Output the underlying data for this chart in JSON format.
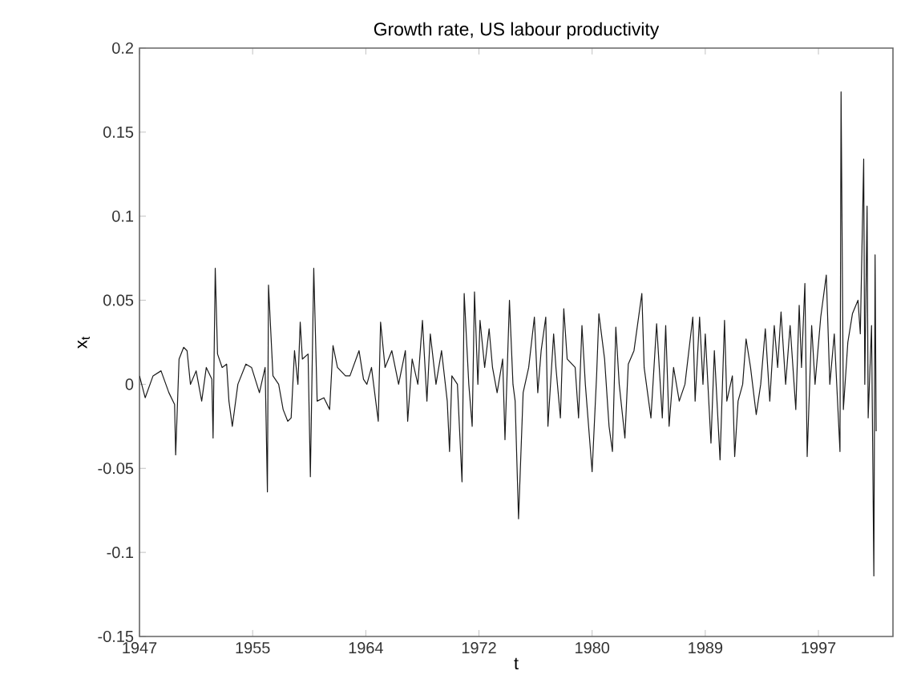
{
  "chart_data": {
    "type": "line",
    "title": "Growth rate, US labour productivity",
    "xlabel": "t",
    "ylabel": "x$_{t}$",
    "xlim": [
      1947,
      2002.6
    ],
    "ylim": [
      -0.15,
      0.2
    ],
    "xticks": [
      1947,
      {
        "value": 1955.35,
        "label": "1955"
      },
      {
        "value": 1963.7,
        "label": "1964"
      },
      {
        "value": 1972.05,
        "label": "1972"
      },
      {
        "value": 1980.4,
        "label": "1980"
      },
      {
        "value": 1988.75,
        "label": "1989"
      },
      {
        "value": 1997.1,
        "label": "1997"
      }
    ],
    "yticks": [
      -0.15,
      -0.1,
      -0.05,
      0,
      0.05,
      0.1,
      0.15,
      0.2
    ],
    "grid": false,
    "marker": "none",
    "line_style": "solid",
    "series": [
      {
        "color": "#1a1a1a",
        "x": [
          1947.0,
          1947.42,
          1948.0,
          1948.59,
          1949.17,
          1949.59,
          1949.67,
          1949.92,
          1950.26,
          1950.51,
          1950.76,
          1951.18,
          1951.59,
          1951.93,
          1952.34,
          1952.43,
          1952.59,
          1952.76,
          1953.1,
          1953.43,
          1953.6,
          1953.85,
          1954.26,
          1954.85,
          1955.27,
          1955.85,
          1956.27,
          1956.44,
          1956.52,
          1956.85,
          1957.27,
          1957.6,
          1957.94,
          1958.19,
          1958.44,
          1958.69,
          1958.86,
          1959.02,
          1959.44,
          1959.61,
          1959.86,
          1960.11,
          1960.61,
          1961.03,
          1961.28,
          1961.61,
          1962.2,
          1962.53,
          1963.2,
          1963.53,
          1963.78,
          1964.12,
          1964.62,
          1964.79,
          1965.12,
          1965.62,
          1966.12,
          1966.62,
          1966.79,
          1967.12,
          1967.54,
          1967.88,
          1968.21,
          1968.46,
          1968.88,
          1969.29,
          1969.71,
          1969.88,
          1970.05,
          1970.46,
          1970.8,
          1970.96,
          1971.3,
          1971.55,
          1971.72,
          1971.97,
          1972.13,
          1972.47,
          1972.8,
          1973.05,
          1973.39,
          1973.8,
          1973.97,
          1974.3,
          1974.56,
          1974.72,
          1974.97,
          1975.31,
          1975.72,
          1976.14,
          1976.39,
          1976.64,
          1976.98,
          1977.14,
          1977.56,
          1977.73,
          1978.06,
          1978.31,
          1978.56,
          1979.15,
          1979.4,
          1979.65,
          1979.9,
          1980.4,
          1980.73,
          1980.9,
          1981.32,
          1981.65,
          1981.9,
          1982.15,
          1982.4,
          1982.82,
          1983.07,
          1983.49,
          1984.07,
          1984.24,
          1984.74,
          1985.16,
          1985.58,
          1985.83,
          1986.08,
          1986.41,
          1986.83,
          1987.25,
          1987.83,
          1988.0,
          1988.33,
          1988.58,
          1988.75,
          1989.17,
          1989.42,
          1989.84,
          1990.17,
          1990.34,
          1990.75,
          1990.92,
          1991.17,
          1991.51,
          1991.76,
          1992.09,
          1992.51,
          1992.84,
          1993.18,
          1993.51,
          1993.84,
          1994.09,
          1994.34,
          1994.68,
          1995.01,
          1995.43,
          1995.68,
          1995.85,
          1996.1,
          1996.27,
          1996.6,
          1996.85,
          1997.27,
          1997.68,
          1997.94,
          1998.27,
          1998.69,
          1998.77,
          1998.94,
          1999.27,
          1999.61,
          2000.02,
          2000.19,
          2000.44,
          2000.52,
          2000.69,
          2000.77,
          2001.02,
          2001.19,
          2001.28,
          2001.36
        ],
        "values": [
          0.005,
          -0.008,
          0.005,
          0.008,
          -0.005,
          -0.012,
          -0.042,
          0.015,
          0.022,
          0.02,
          0.0,
          0.008,
          -0.01,
          0.01,
          0.003,
          -0.032,
          0.069,
          0.018,
          0.01,
          0.012,
          -0.01,
          -0.025,
          0.0,
          0.012,
          0.01,
          -0.005,
          0.01,
          -0.064,
          0.059,
          0.005,
          0.0,
          -0.015,
          -0.022,
          -0.02,
          0.02,
          0.0,
          0.037,
          0.015,
          0.018,
          -0.055,
          0.069,
          -0.01,
          -0.008,
          -0.015,
          0.023,
          0.01,
          0.005,
          0.005,
          0.02,
          0.003,
          0.0,
          0.01,
          -0.022,
          0.037,
          0.01,
          0.02,
          0.0,
          0.02,
          -0.022,
          0.015,
          0.0,
          0.038,
          -0.01,
          0.03,
          0.0,
          0.02,
          -0.01,
          -0.04,
          0.005,
          0.0,
          -0.058,
          0.054,
          0.0,
          -0.025,
          0.055,
          0.0,
          0.038,
          0.01,
          0.033,
          0.01,
          -0.005,
          0.015,
          -0.033,
          0.05,
          0.0,
          -0.01,
          -0.08,
          -0.005,
          0.01,
          0.04,
          -0.005,
          0.02,
          0.04,
          -0.025,
          0.03,
          0.01,
          -0.02,
          0.045,
          0.015,
          0.01,
          -0.02,
          0.035,
          0.0,
          -0.052,
          0.005,
          0.042,
          0.015,
          -0.025,
          -0.04,
          0.034,
          0.0,
          -0.032,
          0.012,
          0.02,
          0.054,
          0.01,
          -0.02,
          0.036,
          -0.02,
          0.035,
          -0.025,
          0.01,
          -0.01,
          0.0,
          0.04,
          -0.01,
          0.04,
          0.0,
          0.03,
          -0.035,
          0.02,
          -0.045,
          0.038,
          -0.01,
          0.005,
          -0.043,
          -0.01,
          0.0,
          0.027,
          0.01,
          -0.018,
          0.0,
          0.033,
          -0.01,
          0.035,
          0.01,
          0.043,
          0.0,
          0.035,
          -0.015,
          0.047,
          0.01,
          0.06,
          -0.043,
          0.035,
          0.0,
          0.04,
          0.065,
          0.0,
          0.03,
          -0.04,
          0.174,
          -0.015,
          0.025,
          0.042,
          0.05,
          0.03,
          0.134,
          0.0,
          0.106,
          -0.02,
          0.035,
          -0.114,
          0.077,
          -0.028
        ]
      }
    ]
  }
}
